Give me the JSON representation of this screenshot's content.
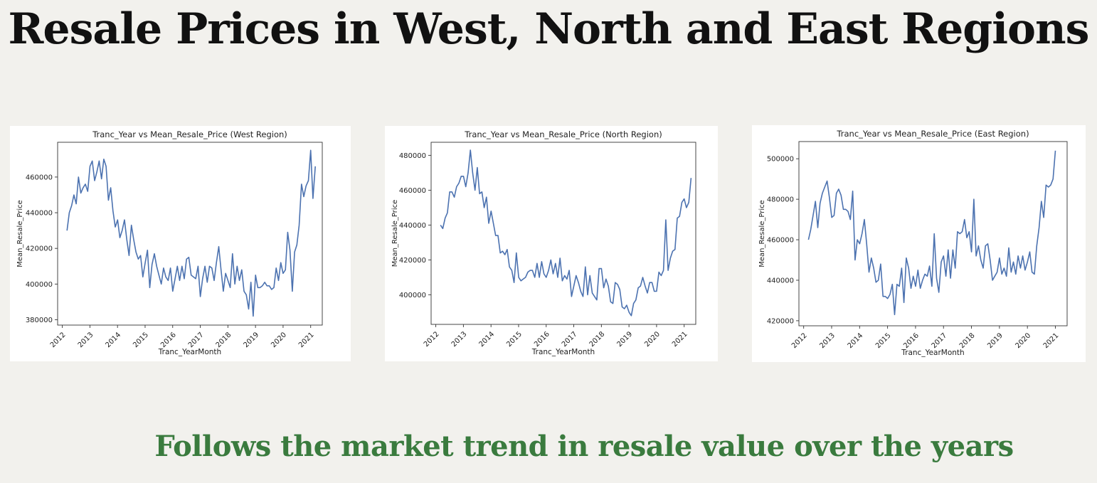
{
  "page": {
    "title": "Resale Prices in West, North and East Regions",
    "subtitle": "Follows the market trend in resale value over the years"
  },
  "colors": {
    "line": "#4c72b0",
    "title": "#111111",
    "subtitle": "#3a7b3e",
    "background": "#f2f1ed"
  },
  "chart_data": [
    {
      "type": "line",
      "title": "Tranc_Year vs Mean_Resale_Price (West Region)",
      "xlabel": "Tranc_YearMonth",
      "ylabel": "Mean_Resale_Price",
      "xlim": [
        2011.83,
        2021.42
      ],
      "ylim": [
        377000,
        479500
      ],
      "xticks": [
        "2012",
        "2013",
        "2014",
        "2015",
        "2016",
        "2017",
        "2018",
        "2019",
        "2020",
        "2021"
      ],
      "yticks": [
        380000,
        400000,
        420000,
        440000,
        460000
      ],
      "grid": false,
      "series": [
        {
          "x_start": 2012.17,
          "x_step": 0.0833,
          "values": [
            430000,
            440000,
            444000,
            450000,
            445000,
            460000,
            451000,
            454000,
            456000,
            452000,
            466000,
            469000,
            458000,
            463000,
            469000,
            459000,
            470000,
            466000,
            447000,
            454000,
            441000,
            432000,
            436000,
            426000,
            430000,
            436000,
            425000,
            416000,
            433000,
            425000,
            418000,
            414000,
            416000,
            404000,
            412000,
            419000,
            398000,
            411000,
            417000,
            410000,
            405000,
            400000,
            409000,
            404000,
            402000,
            409000,
            396000,
            403000,
            410000,
            402000,
            410000,
            403000,
            414000,
            415000,
            405000,
            404000,
            403000,
            410000,
            393000,
            403000,
            410000,
            401000,
            410000,
            409000,
            402000,
            412000,
            421000,
            408000,
            396000,
            406000,
            402000,
            398000,
            417000,
            400000,
            410000,
            402000,
            408000,
            396000,
            394000,
            386000,
            401000,
            382000,
            405000,
            398000,
            398000,
            399000,
            401000,
            399000,
            399000,
            397000,
            398000,
            409000,
            402000,
            412000,
            406000,
            408000,
            429000,
            419000,
            396000,
            418000,
            422000,
            433000,
            456000,
            449000,
            455000,
            458000,
            475000,
            448000,
            466000
          ]
        }
      ]
    },
    {
      "type": "line",
      "title": "Tranc_Year vs Mean_Resale_Price (North Region)",
      "xlabel": "Tranc_YearMonth",
      "ylabel": "Mean_Resale_Price",
      "xlim": [
        2011.83,
        2021.42
      ],
      "ylim": [
        383000,
        487500
      ],
      "xticks": [
        "2012",
        "2013",
        "2014",
        "2015",
        "2016",
        "2017",
        "2018",
        "2019",
        "2020",
        "2021"
      ],
      "yticks": [
        400000,
        420000,
        440000,
        460000,
        480000
      ],
      "grid": false,
      "series": [
        {
          "x_start": 2012.17,
          "x_step": 0.0833,
          "values": [
            440000,
            438000,
            444000,
            447000,
            459000,
            459000,
            456000,
            462000,
            464000,
            468000,
            468000,
            462000,
            470000,
            483000,
            470000,
            460000,
            473000,
            458000,
            459000,
            450000,
            456000,
            441000,
            448000,
            441000,
            434000,
            434000,
            424000,
            425000,
            423000,
            426000,
            416000,
            414000,
            407000,
            424000,
            410000,
            408000,
            409000,
            410000,
            413000,
            414000,
            414000,
            410000,
            418000,
            410000,
            419000,
            412000,
            410000,
            414000,
            420000,
            412000,
            418000,
            410000,
            421000,
            408000,
            411000,
            409000,
            414000,
            399000,
            405000,
            411000,
            407000,
            402000,
            399000,
            416000,
            400000,
            411000,
            401000,
            399000,
            397000,
            415000,
            415000,
            404000,
            409000,
            405000,
            396000,
            395000,
            407000,
            406000,
            403000,
            393000,
            392000,
            394000,
            390000,
            388000,
            395000,
            397000,
            404000,
            405000,
            410000,
            405000,
            401000,
            407000,
            407000,
            402000,
            402000,
            413000,
            411000,
            414000,
            443000,
            414000,
            421000,
            425000,
            426000,
            444000,
            445000,
            453000,
            455000,
            450000,
            453000,
            467000
          ]
        }
      ]
    },
    {
      "type": "line",
      "title": "Tranc_Year vs Mean_Resale_Price (East Region)",
      "xlabel": "Tranc_YearMonth",
      "ylabel": "Mean_Resale_Price",
      "xlim": [
        2011.83,
        2021.42
      ],
      "ylim": [
        417500,
        508500
      ],
      "xticks": [
        "2012",
        "2013",
        "2014",
        "2015",
        "2016",
        "2017",
        "2018",
        "2019",
        "2020",
        "2021"
      ],
      "yticks": [
        420000,
        440000,
        460000,
        480000,
        500000
      ],
      "grid": false,
      "series": [
        {
          "x_start": 2012.17,
          "x_step": 0.0833,
          "values": [
            460000,
            465000,
            472000,
            479000,
            466000,
            478000,
            483000,
            486000,
            489000,
            481000,
            471000,
            472000,
            483000,
            485000,
            482000,
            475000,
            475000,
            474000,
            470000,
            484000,
            450000,
            460000,
            458000,
            463000,
            470000,
            458000,
            444000,
            451000,
            446000,
            439000,
            440000,
            448000,
            432000,
            432000,
            431000,
            433000,
            438000,
            423000,
            438000,
            437000,
            446000,
            429000,
            451000,
            446000,
            436000,
            442000,
            437000,
            445000,
            436000,
            440000,
            443000,
            442000,
            447000,
            437000,
            463000,
            441000,
            434000,
            449000,
            452000,
            442000,
            455000,
            441000,
            455000,
            446000,
            464000,
            463000,
            464000,
            470000,
            461000,
            464000,
            454000,
            480000,
            452000,
            457000,
            450000,
            446000,
            457000,
            458000,
            450000,
            440000,
            442000,
            444000,
            451000,
            443000,
            446000,
            442000,
            456000,
            444000,
            449000,
            443000,
            452000,
            446000,
            452000,
            445000,
            449000,
            454000,
            444000,
            443000,
            457000,
            466000,
            479000,
            471000,
            487000,
            486000,
            487000,
            490000,
            504000
          ]
        }
      ]
    }
  ]
}
